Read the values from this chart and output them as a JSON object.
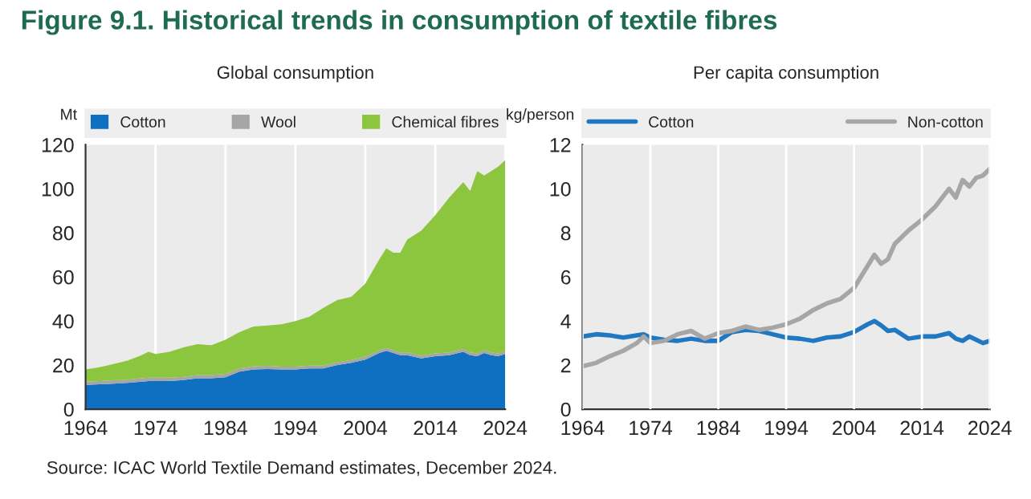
{
  "chart_data": [
    {
      "type": "area",
      "stacked": true,
      "title": "Figure 9.1. Historical trends in consumption of textile fibres",
      "subtitle": "Global consumption",
      "ylabel": "Mt",
      "x": [
        1964,
        1966,
        1968,
        1970,
        1972,
        1973,
        1974,
        1976,
        1978,
        1980,
        1982,
        1984,
        1986,
        1988,
        1990,
        1992,
        1994,
        1996,
        1998,
        2000,
        2002,
        2004,
        2006,
        2007,
        2008,
        2009,
        2010,
        2012,
        2014,
        2016,
        2018,
        2019,
        2020,
        2021,
        2022,
        2023,
        2024
      ],
      "series": [
        {
          "name": "Cotton",
          "color": "#0f6fc0",
          "values": [
            11,
            11.3,
            11.6,
            11.9,
            12.5,
            12.8,
            12.8,
            12.8,
            13.2,
            14,
            14,
            14.5,
            17,
            18,
            18.2,
            18,
            18,
            18.5,
            18.5,
            20,
            21,
            22.5,
            25.5,
            26.5,
            25.5,
            24.5,
            24.5,
            23,
            24,
            24.5,
            26,
            24.5,
            24,
            25.5,
            24.5,
            24,
            25
          ]
        },
        {
          "name": "Wool",
          "color": "#a6a6a6",
          "values": [
            1.5,
            1.5,
            1.5,
            1.5,
            1.5,
            1.5,
            1.5,
            1.5,
            1.5,
            1.5,
            1.5,
            1.5,
            1.5,
            1.5,
            1.5,
            1.3,
            1.3,
            1.3,
            1.3,
            1.3,
            1.3,
            1.3,
            1.3,
            1.3,
            1.3,
            1.3,
            1.3,
            1.3,
            1.3,
            1.3,
            1.3,
            1.3,
            1.3,
            1.3,
            1.3,
            1.3,
            1.3
          ]
        },
        {
          "name": "Chemical fibres",
          "color": "#8cc63f",
          "values": [
            5.5,
            6.2,
            7.4,
            8.6,
            10.5,
            11.7,
            10.7,
            11.7,
            13.3,
            14,
            13.5,
            15.5,
            16.5,
            18,
            18.3,
            19.2,
            20.7,
            22.2,
            26.2,
            28.2,
            28.7,
            33.2,
            41.2,
            45.2,
            44.2,
            45.2,
            51.2,
            56.7,
            62.7,
            70.2,
            75.7,
            73.2,
            82.7,
            79.2,
            82.2,
            84.7,
            86.7
          ]
        }
      ],
      "xlim": [
        1964,
        2024
      ],
      "xticks": [
        1964,
        1974,
        1984,
        1994,
        2004,
        2014,
        2024
      ],
      "ylim": [
        0,
        120
      ],
      "yticks": [
        0,
        20,
        40,
        60,
        80,
        100,
        120
      ],
      "grid": "x",
      "legend": "top",
      "annotations": [
        "Source: ICAC World Textile Demand estimates, December 2024."
      ]
    },
    {
      "type": "line",
      "title": "Per capita consumption",
      "ylabel": "kg/person",
      "x": [
        1964,
        1966,
        1968,
        1970,
        1972,
        1973,
        1974,
        1976,
        1978,
        1980,
        1982,
        1984,
        1986,
        1988,
        1990,
        1992,
        1994,
        1996,
        1998,
        2000,
        2002,
        2004,
        2006,
        2007,
        2008,
        2009,
        2010,
        2012,
        2014,
        2016,
        2018,
        2019,
        2020,
        2021,
        2022,
        2023,
        2024
      ],
      "series": [
        {
          "name": "Cotton",
          "color": "#1f78c1",
          "values": [
            3.3,
            3.4,
            3.35,
            3.25,
            3.35,
            3.4,
            3.25,
            3.15,
            3.1,
            3.2,
            3.1,
            3.1,
            3.5,
            3.6,
            3.55,
            3.4,
            3.25,
            3.2,
            3.1,
            3.25,
            3.3,
            3.5,
            3.85,
            4.0,
            3.8,
            3.55,
            3.6,
            3.2,
            3.3,
            3.3,
            3.45,
            3.2,
            3.1,
            3.3,
            3.15,
            3.0,
            3.1
          ]
        },
        {
          "name": "Non-cotton",
          "color": "#a6a6a6",
          "values": [
            1.95,
            2.1,
            2.4,
            2.65,
            3.0,
            3.3,
            3.0,
            3.1,
            3.4,
            3.55,
            3.2,
            3.45,
            3.55,
            3.75,
            3.6,
            3.7,
            3.85,
            4.1,
            4.5,
            4.8,
            5.0,
            5.5,
            6.5,
            7.0,
            6.6,
            6.8,
            7.5,
            8.1,
            8.6,
            9.2,
            10.0,
            9.6,
            10.4,
            10.1,
            10.5,
            10.6,
            10.9
          ]
        }
      ],
      "xlim": [
        1964,
        2024
      ],
      "xticks": [
        1964,
        1974,
        1984,
        1994,
        2004,
        2014,
        2024
      ],
      "ylim": [
        0,
        12
      ],
      "yticks": [
        0,
        2,
        4,
        6,
        8,
        10,
        12
      ],
      "grid": "x",
      "legend": "top",
      "line_style": "solid",
      "marker": "none"
    }
  ]
}
